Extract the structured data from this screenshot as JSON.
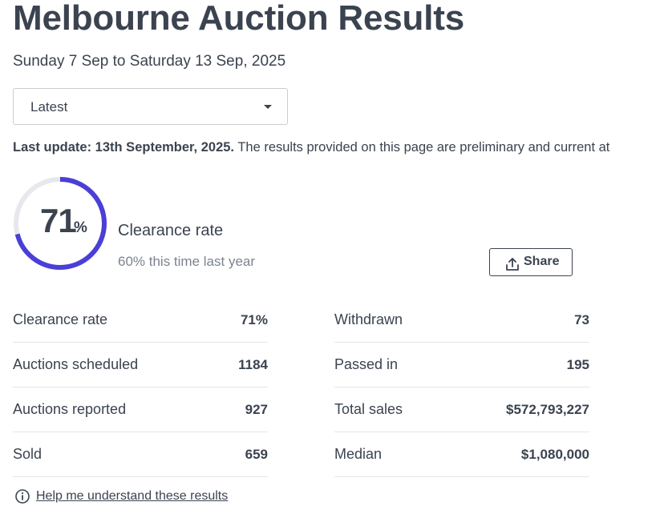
{
  "header": {
    "title": "Melbourne Auction Results",
    "date_range": "Sunday 7 Sep to Saturday 13 Sep, 2025"
  },
  "period_select": {
    "selected": "Latest"
  },
  "update": {
    "label": "Last update: 13th September, 2025.",
    "text": "The results provided on this page are preliminary and current at"
  },
  "clearance": {
    "rate": "71",
    "percent_symbol": "%",
    "rate_fraction": 0.71,
    "label": "Clearance rate",
    "last_year": "60% this time last year",
    "colors": {
      "progress": "#4a3fd6",
      "track": "#e6e8ec"
    }
  },
  "share": {
    "label": "Share",
    "icon": "share-upload-icon"
  },
  "stats_left": [
    {
      "label": "Clearance rate",
      "value": "71%"
    },
    {
      "label": "Auctions scheduled",
      "value": "1184"
    },
    {
      "label": "Auctions reported",
      "value": "927"
    },
    {
      "label": "Sold",
      "value": "659"
    }
  ],
  "stats_right": [
    {
      "label": "Withdrawn",
      "value": "73"
    },
    {
      "label": "Passed in",
      "value": "195"
    },
    {
      "label": "Total sales",
      "value": "$572,793,227"
    },
    {
      "label": "Median",
      "value": "$1,080,000"
    }
  ],
  "help": {
    "icon": "info-icon",
    "link": "Help me understand these results"
  }
}
